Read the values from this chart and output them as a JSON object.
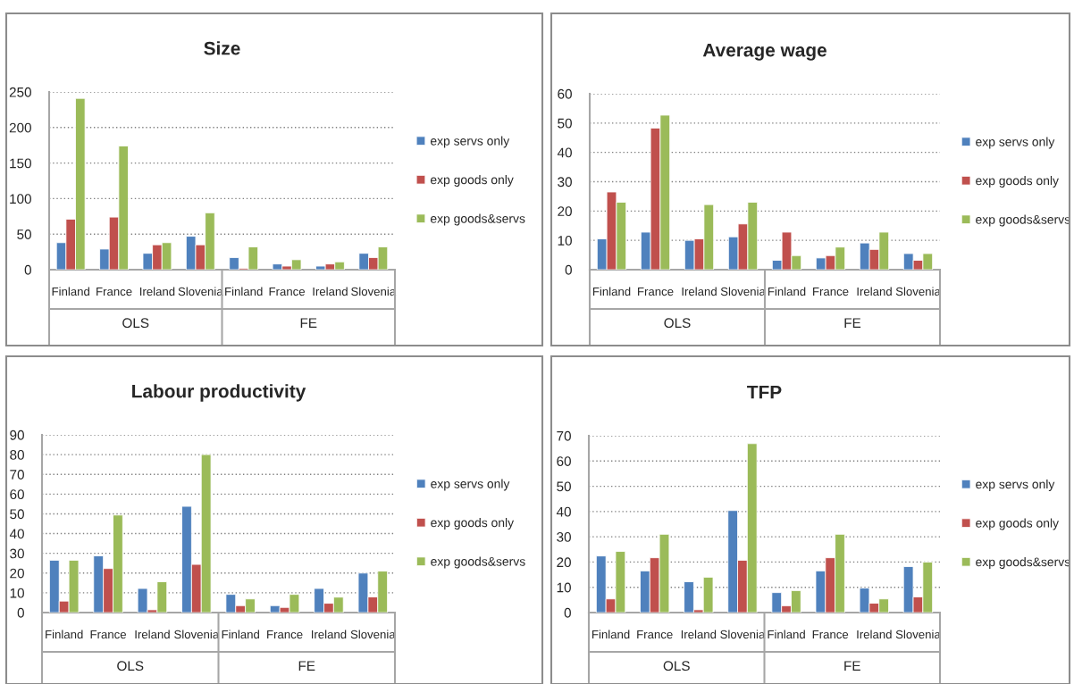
{
  "chart_data": [
    {
      "type": "bar",
      "title": "Size",
      "categories": [
        "Finland",
        "France",
        "Ireland",
        "Slovenia",
        "Finland",
        "France",
        "Ireland",
        "Slovenia"
      ],
      "annotations": [
        "OLS",
        "FE"
      ],
      "ylim": [
        0,
        250
      ],
      "yticks": [
        0,
        50,
        100,
        150,
        200,
        250
      ],
      "grid": "y",
      "legend": "right",
      "series": [
        {
          "name": "exp servs only",
          "color": "#4f81bd",
          "values": [
            38,
            29,
            23,
            47,
            17,
            8,
            5,
            23
          ]
        },
        {
          "name": "exp goods only",
          "color": "#c0504d",
          "values": [
            71,
            74,
            35,
            35,
            2,
            5,
            8,
            17
          ]
        },
        {
          "name": "exp goods&servs",
          "color": "#9bbb59",
          "values": [
            241,
            174,
            38,
            80,
            32,
            14,
            11,
            32
          ]
        }
      ]
    },
    {
      "type": "bar",
      "title": "Average wage",
      "categories": [
        "Finland",
        "France",
        "Ireland",
        "Slovenia",
        "Finland",
        "France",
        "Ireland",
        "Slovenia"
      ],
      "annotations": [
        "OLS",
        "FE"
      ],
      "ylim": [
        0,
        60
      ],
      "yticks": [
        0,
        10,
        20,
        30,
        40,
        50,
        60
      ],
      "grid": "y",
      "legend": "right",
      "series": [
        {
          "name": "exp servs only",
          "color": "#4f81bd",
          "values": [
            10.5,
            12.8,
            10,
            11.2,
            3.2,
            4,
            9.1,
            5.5
          ]
        },
        {
          "name": "exp goods only",
          "color": "#c0504d",
          "values": [
            26.5,
            48.3,
            10.5,
            15.6,
            12.8,
            4.8,
            6.9,
            3.2
          ]
        },
        {
          "name": "exp goods&servs",
          "color": "#9bbb59",
          "values": [
            23,
            52.7,
            22.2,
            23,
            4.8,
            7.7,
            12.8,
            5.5
          ]
        }
      ]
    },
    {
      "type": "bar",
      "title": "Labour productivity",
      "categories": [
        "Finland",
        "France",
        "Ireland",
        "Slovenia",
        "Finland",
        "France",
        "Ireland",
        "Slovenia"
      ],
      "annotations": [
        "OLS",
        "FE"
      ],
      "ylim": [
        0,
        90
      ],
      "yticks": [
        0,
        10,
        20,
        30,
        40,
        50,
        60,
        70,
        80,
        90
      ],
      "grid": "y",
      "legend": "right",
      "series": [
        {
          "name": "exp servs only",
          "color": "#4f81bd",
          "values": [
            26.5,
            28.7,
            12.2,
            53.8,
            9.2,
            3.5,
            12.2,
            20
          ]
        },
        {
          "name": "exp goods only",
          "color": "#c0504d",
          "values": [
            5.8,
            22.3,
            1.4,
            24.4,
            3.5,
            2.6,
            4.7,
            7.9
          ]
        },
        {
          "name": "exp goods&servs",
          "color": "#9bbb59",
          "values": [
            26.5,
            49.4,
            15.6,
            80,
            6.9,
            9.2,
            7.8,
            21
          ]
        }
      ]
    },
    {
      "type": "bar",
      "title": "TFP",
      "categories": [
        "Finland",
        "France",
        "Ireland",
        "Slovenia",
        "Finland",
        "France",
        "Ireland",
        "Slovenia"
      ],
      "annotations": [
        "OLS",
        "FE"
      ],
      "ylim": [
        0,
        70
      ],
      "yticks": [
        0,
        10,
        20,
        30,
        40,
        50,
        60,
        70
      ],
      "grid": "y",
      "legend": "right",
      "series": [
        {
          "name": "exp servs only",
          "color": "#4f81bd",
          "values": [
            22.4,
            16.5,
            12.2,
            40.4,
            7.9,
            16.5,
            9.7,
            18.2
          ]
        },
        {
          "name": "exp goods only",
          "color": "#c0504d",
          "values": [
            5.4,
            21.7,
            1.1,
            20.7,
            2.7,
            21.7,
            3.7,
            6.2
          ]
        },
        {
          "name": "exp goods&servs",
          "color": "#9bbb59",
          "values": [
            24.2,
            31,
            14,
            66.9,
            8.7,
            31,
            5.4,
            20
          ]
        }
      ]
    }
  ]
}
